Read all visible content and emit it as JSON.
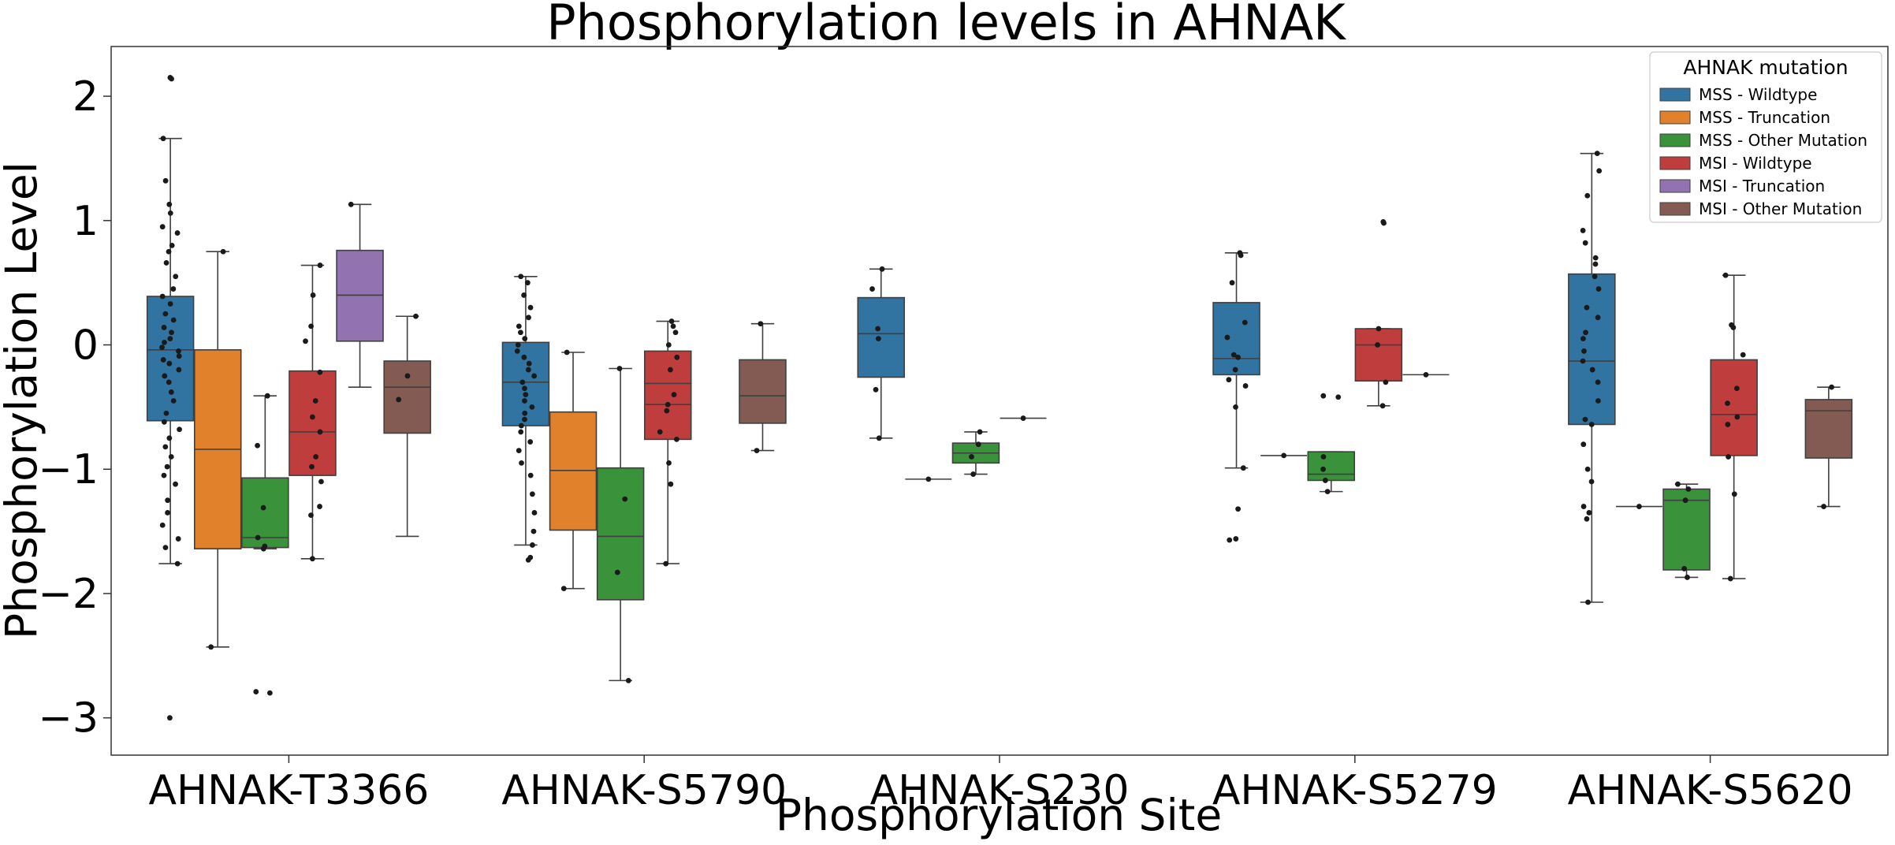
{
  "chart_data": {
    "type": "boxplot",
    "title": "Phosphorylation levels in AHNAK",
    "xlabel": "Phosphorylation Site",
    "ylabel": "Phosphorylation Level",
    "ylim": [
      -3.3,
      2.4
    ],
    "yticks": [
      2,
      1,
      0,
      -1,
      -2,
      -3
    ],
    "ytick_labels": [
      "2",
      "1",
      "0",
      "−1",
      "−2",
      "−3"
    ],
    "grid": false,
    "legend_position": "top-right",
    "legend_title": "AHNAK mutation",
    "categories": [
      "AHNAK-T3366",
      "AHNAK-S5790",
      "AHNAK-S230",
      "AHNAK-S5279",
      "AHNAK-S5620"
    ],
    "series": [
      {
        "name": "MSS - Wildtype",
        "color": "#3274a1",
        "boxes": [
          {
            "q1": -0.61,
            "median": -0.04,
            "q3": 0.39,
            "wlo": -1.76,
            "whi": 1.66,
            "points": [
              2.15,
              2.14,
              1.66,
              1.32,
              1.13,
              1.06,
              0.95,
              0.9,
              0.8,
              0.75,
              0.66,
              0.55,
              0.45,
              0.39,
              0.33,
              0.25,
              0.2,
              0.14,
              0.1,
              0.05,
              0.02,
              -0.02,
              -0.05,
              -0.09,
              -0.12,
              -0.15,
              -0.2,
              -0.25,
              -0.3,
              -0.38,
              -0.45,
              -0.55,
              -0.62,
              -0.68,
              -0.75,
              -0.82,
              -0.9,
              -0.98,
              -1.05,
              -1.12,
              -1.25,
              -1.35,
              -1.45,
              -1.56,
              -1.63,
              -1.76,
              -3.0
            ]
          },
          {
            "q1": -0.65,
            "median": -0.3,
            "q3": 0.02,
            "wlo": -1.61,
            "whi": 0.55,
            "points": [
              0.55,
              0.5,
              0.4,
              0.3,
              0.22,
              0.15,
              0.1,
              0.05,
              0.0,
              -0.05,
              -0.1,
              -0.15,
              -0.2,
              -0.25,
              -0.3,
              -0.35,
              -0.4,
              -0.45,
              -0.5,
              -0.55,
              -0.6,
              -0.65,
              -0.7,
              -0.78,
              -0.85,
              -0.95,
              -1.05,
              -1.2,
              -1.35,
              -1.5,
              -1.61,
              -1.71,
              -1.73
            ]
          },
          {
            "q1": -0.26,
            "median": 0.09,
            "q3": 0.38,
            "wlo": -0.75,
            "whi": 0.61,
            "points": [
              0.61,
              0.45,
              0.13,
              0.05,
              -0.36,
              -0.75
            ]
          },
          {
            "q1": -0.24,
            "median": -0.11,
            "q3": 0.34,
            "wlo": -0.99,
            "whi": 0.74,
            "points": [
              0.74,
              0.72,
              0.5,
              0.18,
              0.06,
              -0.08,
              -0.1,
              -0.2,
              -0.28,
              -0.33,
              -0.5,
              -0.99,
              -1.32,
              -1.56,
              -1.57
            ]
          },
          {
            "q1": -0.64,
            "median": -0.13,
            "q3": 0.57,
            "wlo": -2.07,
            "whi": 1.54,
            "points": [
              1.54,
              1.4,
              1.2,
              0.92,
              0.82,
              0.7,
              0.65,
              0.55,
              0.45,
              0.3,
              0.22,
              0.1,
              0.05,
              -0.05,
              -0.13,
              -0.2,
              -0.3,
              -0.45,
              -0.6,
              -0.64,
              -0.8,
              -1.0,
              -1.1,
              -1.3,
              -1.35,
              -1.4,
              -2.07
            ]
          }
        ]
      },
      {
        "name": "MSS - Truncation",
        "color": "#e1812c",
        "boxes": [
          {
            "q1": -1.64,
            "median": -0.84,
            "q3": -0.04,
            "wlo": -2.43,
            "whi": 0.75,
            "points": [
              0.75,
              -2.43
            ]
          },
          {
            "q1": -1.49,
            "median": -1.01,
            "q3": -0.54,
            "wlo": -1.96,
            "whi": -0.06,
            "points": [
              -0.06,
              -1.96
            ]
          },
          null,
          null,
          null
        ]
      },
      {
        "name": "MSS - Other Mutation",
        "color": "#3a923a",
        "boxes": [
          {
            "q1": -1.63,
            "median": -1.55,
            "q3": -1.07,
            "wlo": -1.64,
            "whi": -0.41,
            "points": [
              -0.41,
              -0.81,
              -1.31,
              -1.55,
              -1.62,
              -1.64,
              -2.79,
              -2.8
            ]
          },
          {
            "q1": -2.05,
            "median": -1.54,
            "q3": -0.99,
            "wlo": -2.7,
            "whi": -0.19,
            "points": [
              -0.19,
              -1.24,
              -1.83,
              -2.7
            ]
          },
          {
            "q1": -0.95,
            "median": -0.87,
            "q3": -0.79,
            "wlo": -1.04,
            "whi": -0.7,
            "points": [
              -0.7,
              -0.8,
              -0.9,
              -1.04
            ]
          },
          {
            "q1": -1.09,
            "median": -1.04,
            "q3": -0.86,
            "wlo": -1.18,
            "whi": -0.86,
            "points": [
              -0.41,
              -0.42,
              -0.9,
              -1.0,
              -1.09,
              -1.18
            ]
          },
          {
            "q1": -1.81,
            "median": -1.25,
            "q3": -1.16,
            "wlo": -1.87,
            "whi": -1.12,
            "points": [
              -1.12,
              -1.16,
              -1.25,
              -1.8,
              -1.87
            ]
          }
        ]
      },
      {
        "name": "MSI - Wildtype",
        "color": "#c03d3e",
        "boxes": [
          {
            "q1": -1.05,
            "median": -0.7,
            "q3": -0.21,
            "wlo": -1.72,
            "whi": 0.64,
            "points": [
              0.64,
              0.4,
              0.15,
              0.03,
              -0.22,
              -0.45,
              -0.58,
              -0.7,
              -0.9,
              -0.98,
              -1.1,
              -1.3,
              -1.37,
              -1.72
            ]
          },
          {
            "q1": -0.76,
            "median": -0.31,
            "q3": -0.05,
            "wlo": -1.76,
            "whi": 0.19,
            "points": [
              0.19,
              0.15,
              0.1,
              0.0,
              -0.1,
              -0.2,
              -0.4,
              -0.53,
              -0.7,
              -0.76,
              -0.95,
              -1.12,
              -1.76
            ]
          },
          null,
          {
            "q1": -0.29,
            "median": 0.0,
            "q3": 0.13,
            "wlo": -0.49,
            "whi": 0.13,
            "points": [
              0.99,
              0.98,
              0.13,
              0.0,
              -0.3,
              -0.49
            ]
          },
          {
            "q1": -0.89,
            "median": -0.56,
            "q3": -0.12,
            "wlo": -1.88,
            "whi": 0.56,
            "points": [
              0.56,
              0.16,
              0.14,
              -0.08,
              -0.35,
              -0.47,
              -0.58,
              -0.64,
              -0.9,
              -1.2,
              -1.88
            ]
          }
        ]
      },
      {
        "name": "MSI - Truncation",
        "color": "#9372b2",
        "boxes": [
          {
            "q1": 0.03,
            "median": 0.4,
            "q3": 0.76,
            "wlo": -0.34,
            "whi": 1.13,
            "points": [
              1.13
            ]
          },
          null,
          null,
          null,
          null
        ]
      },
      {
        "name": "MSI - Other Mutation",
        "color": "#845b53",
        "boxes": [
          {
            "q1": -0.71,
            "median": -0.34,
            "q3": -0.13,
            "wlo": -1.54,
            "whi": 0.23,
            "points": [
              0.23,
              -0.25,
              -0.44
            ]
          },
          {
            "q1": -0.63,
            "median": -0.41,
            "q3": -0.12,
            "wlo": -0.85,
            "whi": 0.17,
            "points": [
              0.17,
              -0.85
            ]
          },
          null,
          null,
          {
            "q1": -0.91,
            "median": -0.53,
            "q3": -0.44,
            "wlo": -1.3,
            "whi": -0.34,
            "points": [
              -0.34,
              -1.3
            ]
          }
        ]
      }
    ],
    "single_values": [
      {
        "category": "AHNAK-S5790",
        "series": "MSI - Wildtype",
        "value": -0.48
      },
      {
        "category": "AHNAK-S230",
        "series": "MSS - Truncation",
        "value": -1.08
      },
      {
        "category": "AHNAK-S230",
        "series": "MSI - Wildtype",
        "value": -0.59
      },
      {
        "category": "AHNAK-S5279",
        "series": "MSS - Truncation",
        "value": -0.89
      },
      {
        "category": "AHNAK-S5279",
        "series": "MSI - Truncation",
        "value": -0.24
      },
      {
        "category": "AHNAK-S5620",
        "series": "MSS - Truncation",
        "value": -1.3
      }
    ]
  }
}
